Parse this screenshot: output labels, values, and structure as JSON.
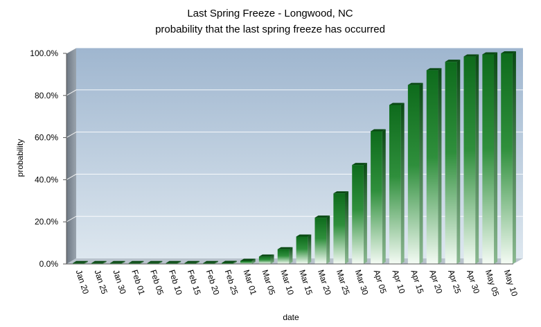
{
  "chart_data": {
    "type": "bar",
    "title": "Last Spring Freeze - Longwood,  NC",
    "subtitle": "probability  that the last spring freeze has occurred",
    "xlabel": "date",
    "ylabel": "probability",
    "ylim": [
      0,
      100
    ],
    "ytick_values": [
      0,
      20,
      40,
      60,
      80,
      100
    ],
    "ytick_labels": [
      "0.0%",
      "20.0%",
      "40.0%",
      "60.0%",
      "80.0%",
      "100.0%"
    ],
    "grid": true,
    "categories": [
      "Jan 20",
      "Jan 25",
      "Jan 30",
      "Feb 01",
      "Feb 05",
      "Feb 10",
      "Feb 15",
      "Feb 20",
      "Feb 25",
      "Mar 01",
      "Mar 05",
      "Mar 10",
      "Mar 15",
      "Mar 20",
      "Mar 25",
      "Mar 30",
      "Apr 05",
      "Apr 10",
      "Apr 15",
      "Apr 20",
      "Apr 25",
      "Apr 30",
      "May 05",
      "May 10"
    ],
    "values": [
      0,
      0,
      0,
      0,
      0,
      0,
      0,
      0,
      0.5,
      1.5,
      3.5,
      7,
      13,
      22,
      33.5,
      47,
      63,
      75.5,
      85,
      92,
      96,
      98.5,
      99.5,
      100
    ],
    "colors": {
      "bar_top": "#0e6b1c",
      "bar_bottom": "#f4fbf4",
      "bar_side": "#0a4a14",
      "bg_top": "#9fb6cf",
      "bg_bottom": "#dde7ef",
      "wall": "#7f8994",
      "grid": "#ffffff"
    }
  }
}
